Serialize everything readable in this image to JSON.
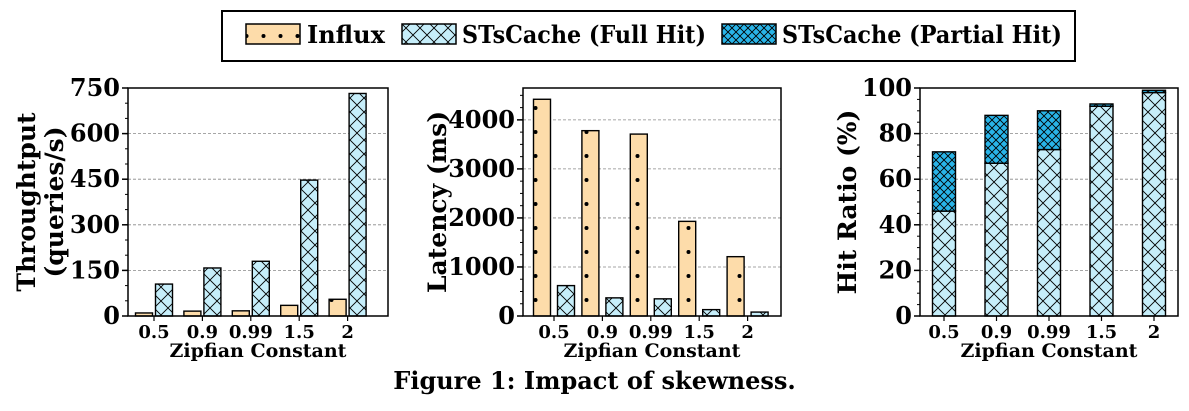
{
  "caption": "Figure 1: Impact of skewness.",
  "legend": {
    "entries": [
      {
        "label": "Influx",
        "color": "#fddcaa",
        "pattern": "dots"
      },
      {
        "label": "STsCache (Full Hit)",
        "color": "#c6eefa",
        "pattern": "crosshatch"
      },
      {
        "label": "STsCache (Partial Hit)",
        "color": "#29b4e8",
        "pattern": "dense-crosshatch"
      }
    ]
  },
  "chart_data": [
    {
      "type": "bar",
      "xlabel": "Zipfian Constant",
      "ylabel": "Throughtput (queries/s)",
      "categories": [
        "0.5",
        "0.9",
        "0.99",
        "1.5",
        "2"
      ],
      "ylim": [
        0,
        750
      ],
      "yticks": [
        0,
        150,
        300,
        450,
        600,
        750
      ],
      "grid": true,
      "series": [
        {
          "name": "Influx",
          "values": [
            10,
            16,
            17,
            35,
            55
          ]
        },
        {
          "name": "STsCache (Full Hit)",
          "values": [
            105,
            158,
            180,
            447,
            732
          ]
        }
      ]
    },
    {
      "type": "bar",
      "xlabel": "Zipfian Constant",
      "ylabel": "Latency (ms)",
      "categories": [
        "0.5",
        "0.9",
        "0.99",
        "1.5",
        "2"
      ],
      "ylim": [
        0,
        4650
      ],
      "yticks": [
        0,
        1000,
        2000,
        3000,
        4000
      ],
      "grid": true,
      "series": [
        {
          "name": "Influx",
          "values": [
            4420,
            3780,
            3710,
            1930,
            1210
          ]
        },
        {
          "name": "STsCache (Full Hit)",
          "values": [
            620,
            370,
            350,
            130,
            80
          ]
        }
      ]
    },
    {
      "type": "bar",
      "stacked": true,
      "xlabel": "Zipfian Constant",
      "ylabel": "Hit Ratio (%)",
      "categories": [
        "0.5",
        "0.9",
        "0.99",
        "1.5",
        "2"
      ],
      "ylim": [
        0,
        100
      ],
      "yticks": [
        0,
        20,
        40,
        60,
        80,
        100
      ],
      "grid": true,
      "series": [
        {
          "name": "STsCache (Full Hit)",
          "values": [
            46,
            67,
            73,
            92,
            98
          ]
        },
        {
          "name": "STsCache (Partial Hit)",
          "values": [
            26,
            21,
            17,
            1,
            1
          ]
        }
      ]
    }
  ]
}
